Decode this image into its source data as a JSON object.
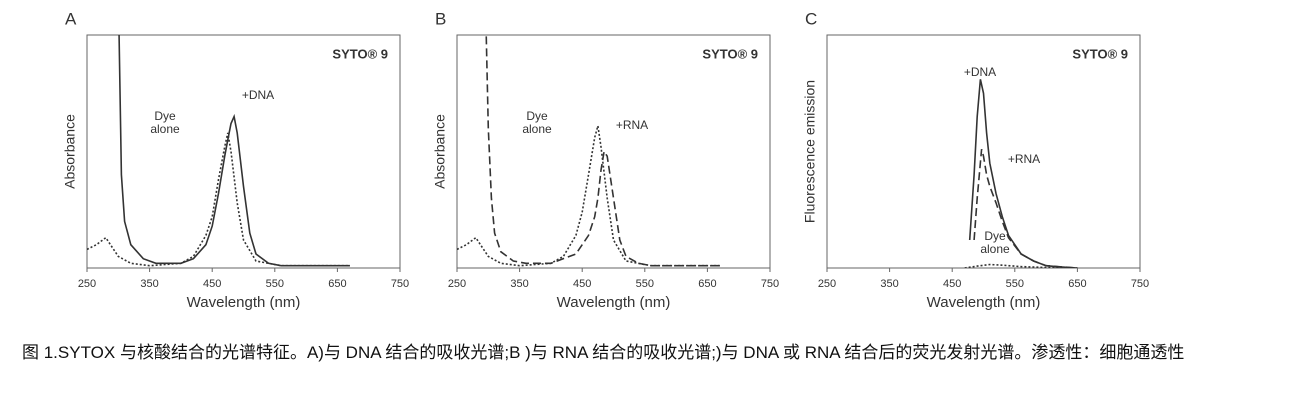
{
  "chart_data": [
    {
      "type": "line",
      "panel_label": "A",
      "annotation": "SYTO® 9",
      "xlabel": "Wavelength (nm)",
      "ylabel": "Absorbance",
      "xlim": [
        250,
        750
      ],
      "ylim": [
        0,
        100
      ],
      "xticks": [
        250,
        350,
        450,
        550,
        650,
        750
      ],
      "series": [
        {
          "name": "+DNA",
          "color": "#333333",
          "style": "solid",
          "x": [
            300,
            305,
            310,
            320,
            340,
            360,
            400,
            420,
            440,
            450,
            460,
            470,
            475,
            480,
            485,
            490,
            500,
            510,
            520,
            540,
            560,
            600,
            670
          ],
          "values": [
            120,
            40,
            20,
            10,
            4,
            2,
            2,
            4,
            10,
            18,
            32,
            48,
            55,
            62,
            65,
            58,
            35,
            15,
            6,
            2,
            1,
            1,
            1
          ]
        },
        {
          "name": "Dye alone",
          "color": "#333333",
          "style": "dotted",
          "x": [
            250,
            265,
            280,
            290,
            300,
            320,
            350,
            400,
            420,
            440,
            450,
            460,
            470,
            475,
            480,
            490,
            500,
            520,
            560,
            670
          ],
          "values": [
            8,
            10,
            13,
            9,
            5,
            2,
            1,
            2,
            5,
            14,
            22,
            38,
            52,
            58,
            50,
            28,
            12,
            3,
            1,
            1
          ]
        }
      ]
    },
    {
      "type": "line",
      "panel_label": "B",
      "annotation": "SYTO® 9",
      "xlabel": "Wavelength (nm)",
      "ylabel": "Absorbance",
      "xlim": [
        250,
        750
      ],
      "ylim": [
        0,
        100
      ],
      "xticks": [
        250,
        350,
        450,
        550,
        650,
        750
      ],
      "series": [
        {
          "name": "+RNA",
          "color": "#333333",
          "style": "dashed",
          "x": [
            295,
            300,
            305,
            310,
            320,
            340,
            360,
            400,
            440,
            460,
            470,
            475,
            480,
            485,
            490,
            500,
            510,
            520,
            540,
            560,
            670
          ],
          "values": [
            120,
            60,
            30,
            15,
            7,
            3,
            2,
            2,
            6,
            14,
            22,
            30,
            42,
            50,
            48,
            30,
            12,
            5,
            2,
            1,
            1
          ]
        },
        {
          "name": "Dye alone",
          "color": "#333333",
          "style": "dotted",
          "x": [
            250,
            265,
            280,
            290,
            300,
            320,
            350,
            400,
            420,
            440,
            450,
            460,
            470,
            475,
            480,
            490,
            500,
            520,
            560,
            670
          ],
          "values": [
            8,
            10,
            13,
            9,
            5,
            2,
            1,
            2,
            5,
            14,
            24,
            40,
            56,
            61,
            52,
            30,
            12,
            3,
            1,
            1
          ]
        }
      ]
    },
    {
      "type": "line",
      "panel_label": "C",
      "annotation": "SYTO® 9",
      "xlabel": "Wavelength (nm)",
      "ylabel": "Fluorescence emission",
      "xlim": [
        250,
        750
      ],
      "ylim": [
        0,
        100
      ],
      "xticks": [
        250,
        350,
        450,
        550,
        650,
        750
      ],
      "series": [
        {
          "name": "+DNA",
          "color": "#333333",
          "style": "solid",
          "x": [
            478,
            485,
            490,
            495,
            500,
            505,
            510,
            520,
            530,
            540,
            560,
            580,
            600,
            620,
            650
          ],
          "values": [
            12,
            40,
            65,
            81,
            75,
            58,
            45,
            32,
            22,
            14,
            6,
            3,
            1,
            0.5,
            0
          ]
        },
        {
          "name": "+RNA",
          "color": "#333333",
          "style": "dashed",
          "x": [
            485,
            490,
            497,
            500,
            505,
            510,
            520,
            530,
            540,
            560,
            580,
            600,
            650
          ],
          "values": [
            12,
            30,
            51,
            48,
            40,
            35,
            28,
            20,
            13,
            6,
            3,
            1,
            0
          ]
        },
        {
          "name": "Dye alone",
          "color": "#333333",
          "style": "dotted",
          "x": [
            470,
            490,
            510,
            530,
            560,
            600,
            650
          ],
          "values": [
            0,
            0.8,
            1.5,
            1.2,
            0.6,
            0.2,
            0
          ]
        }
      ]
    }
  ],
  "caption": "图 1.SYTOX  与核酸结合的光谱特征。A)与 DNA  结合的吸收光谱;B )与  RNA  结合的吸收光谱;)与 DNA 或 RNA 结合后的荧光发射光谱。渗透性：细胞通透性"
}
